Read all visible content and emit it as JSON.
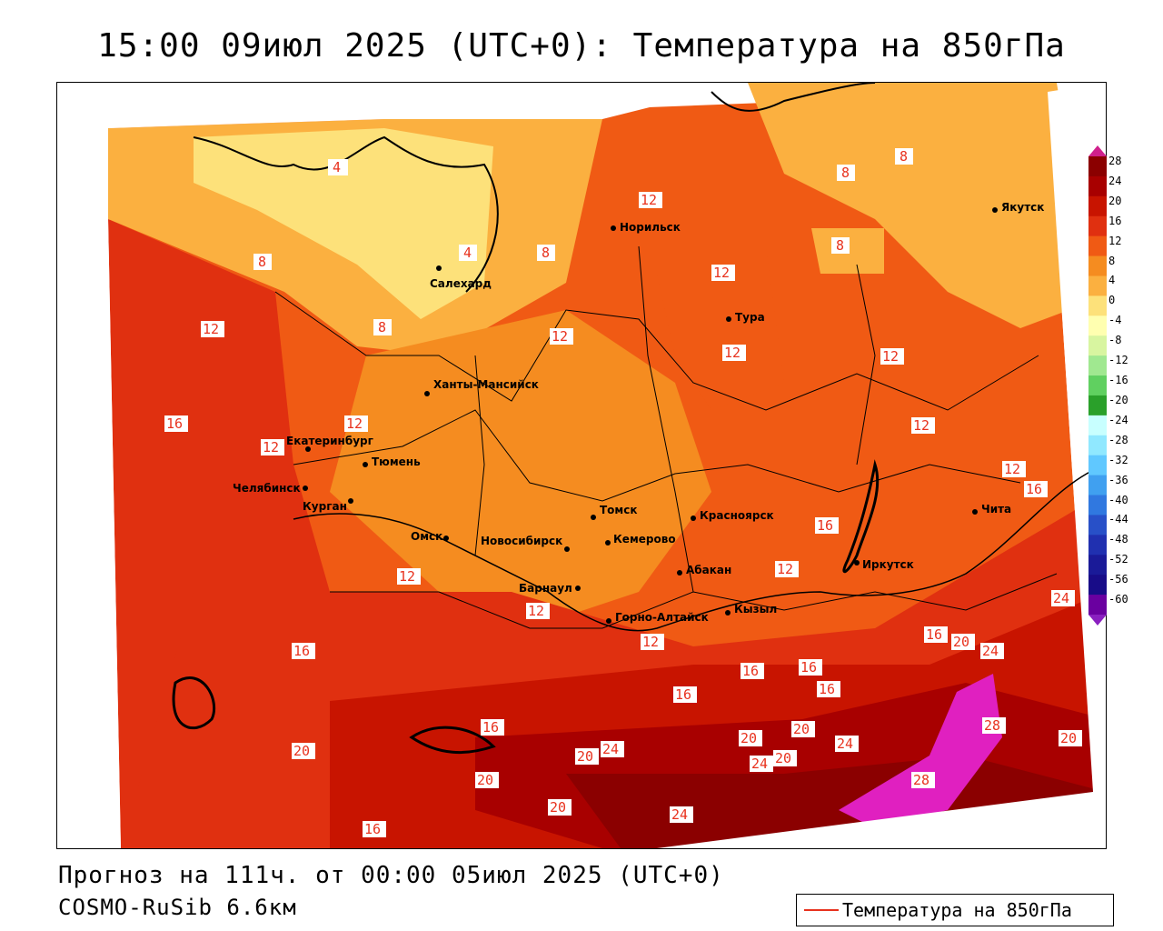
{
  "title": "15:00 09июл 2025 (UTC+0): Температура на 850гПа",
  "footer": {
    "forecast": "Прогноз на 111ч. от 00:00 05июл 2025 (UTC+0)",
    "model": "COSMO-RuSib 6.6км"
  },
  "legend": {
    "label": "Температура на 850гПа",
    "color": "#e8321e"
  },
  "colorbar": {
    "ticks": [
      "28",
      "24",
      "20",
      "16",
      "12",
      "8",
      "4",
      "0",
      "-4",
      "-8",
      "-12",
      "-16",
      "-20",
      "-24",
      "-28",
      "-32",
      "-36",
      "-40",
      "-44",
      "-48",
      "-52",
      "-56",
      "-60"
    ],
    "colors": [
      "#8b0000",
      "#a80000",
      "#c81400",
      "#e03010",
      "#f05a14",
      "#f58c20",
      "#fbb040",
      "#fde17a",
      "#ffffb0",
      "#d8f5a0",
      "#a0e890",
      "#60d060",
      "#2aa02a",
      "#c8ffff",
      "#90e8ff",
      "#60c8ff",
      "#40a0f0",
      "#3078e0",
      "#2850c8",
      "#2030b0",
      "#1a1a98",
      "#180c88",
      "#6a00a0"
    ]
  },
  "cities": [
    {
      "name": "Норильск"
    },
    {
      "name": "Якутск"
    },
    {
      "name": "Салехард"
    },
    {
      "name": "Тура"
    },
    {
      "name": "Ханты-Мансийск"
    },
    {
      "name": "Екатеринбург"
    },
    {
      "name": "Тюмень"
    },
    {
      "name": "Челябинск"
    },
    {
      "name": "Курган"
    },
    {
      "name": "Омск"
    },
    {
      "name": "Новосибирск"
    },
    {
      "name": "Томск"
    },
    {
      "name": "Кемерово"
    },
    {
      "name": "Красноярск"
    },
    {
      "name": "Абакан"
    },
    {
      "name": "Барнаул"
    },
    {
      "name": "Горно-Алтайск"
    },
    {
      "name": "Кызыл"
    },
    {
      "name": "Иркутск"
    },
    {
      "name": "Чита"
    }
  ],
  "contour_labels": [
    "4",
    "4",
    "8",
    "8",
    "8",
    "8",
    "8",
    "8",
    "12",
    "12",
    "12",
    "12",
    "12",
    "12",
    "12",
    "12",
    "12",
    "12",
    "12",
    "12",
    "12",
    "16",
    "16",
    "16",
    "16",
    "16",
    "16",
    "16",
    "16",
    "16",
    "16",
    "20",
    "20",
    "20",
    "20",
    "20",
    "20",
    "20",
    "20",
    "20",
    "24",
    "24",
    "24",
    "24",
    "24",
    "28",
    "28",
    "24",
    "16",
    "12"
  ]
}
